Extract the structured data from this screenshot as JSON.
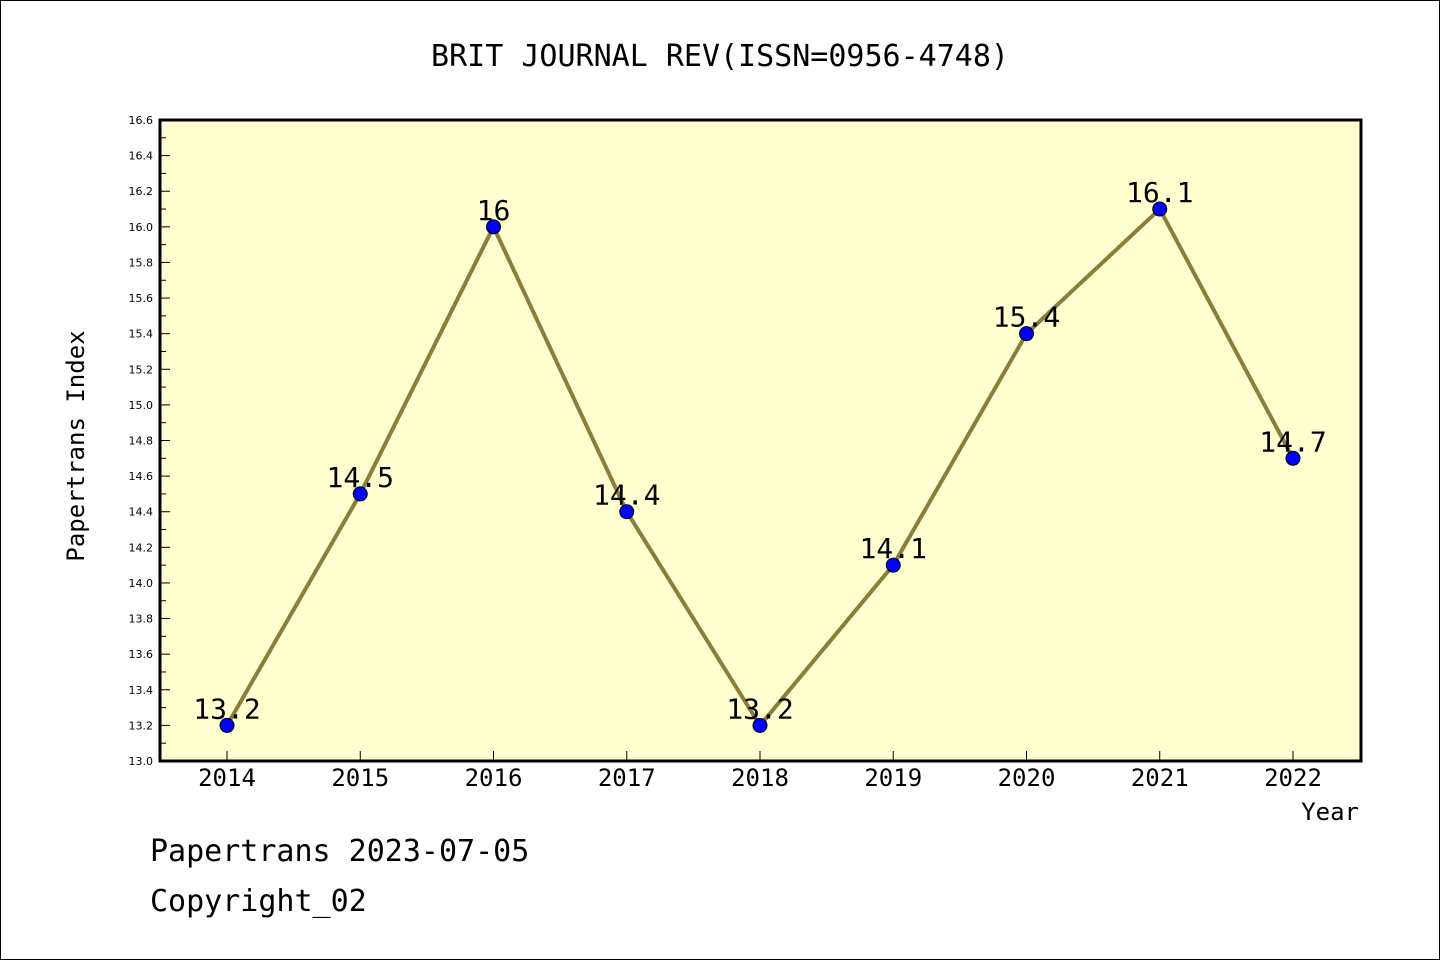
{
  "chart_data": {
    "type": "line",
    "title": "BRIT JOURNAL REV(ISSN=0956-4748)",
    "xlabel": "Year",
    "ylabel": "Papertrans Index",
    "categories": [
      "2014",
      "2015",
      "2016",
      "2017",
      "2018",
      "2019",
      "2020",
      "2021",
      "2022"
    ],
    "series": [
      {
        "values": [
          13.2,
          14.5,
          16.0,
          14.4,
          13.2,
          14.1,
          15.4,
          16.1,
          14.7
        ],
        "labels": [
          "13.2",
          "14.5",
          "16",
          "14.4",
          "13.2",
          "14.1",
          "15.4",
          "16.1",
          "14.7"
        ]
      }
    ],
    "ylim": [
      13.0,
      16.6
    ],
    "yticks": [
      "13.0",
      "13.2",
      "13.4",
      "13.6",
      "13.8",
      "14.0",
      "14.2",
      "14.4",
      "14.6",
      "14.8",
      "15.0",
      "15.2",
      "15.4",
      "15.6",
      "15.8",
      "16.0",
      "16.2",
      "16.4",
      "16.6"
    ],
    "grid": false,
    "colors": {
      "plot_background": "#ffffd0",
      "line": "#8b7d3a",
      "marker": "#0000ff"
    }
  },
  "footer": {
    "date_text": "Papertrans 2023-07-05",
    "copyright_text": "Copyright_02"
  }
}
